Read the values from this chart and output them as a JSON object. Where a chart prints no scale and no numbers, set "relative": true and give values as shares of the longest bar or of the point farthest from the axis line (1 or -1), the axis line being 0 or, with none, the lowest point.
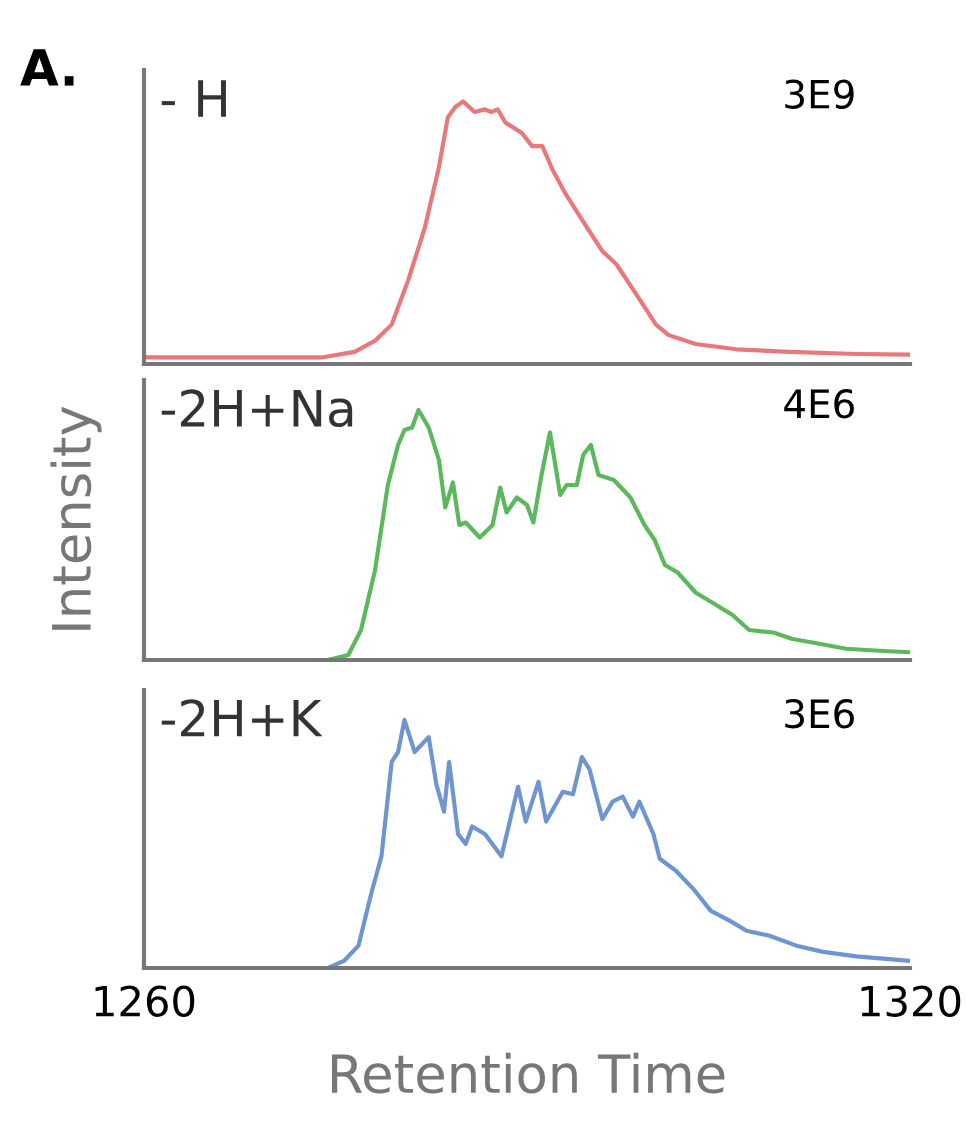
{
  "chart_data": [
    {
      "type": "line",
      "title": "A.",
      "relative": true,
      "xlim": [
        1260,
        1320
      ],
      "tick_labels": false,
      "annotations": [
        "- H",
        "3E9"
      ],
      "series": [
        {
          "color": "#e8787a",
          "x": [
            1260,
            1273.9,
            1276.5,
            1278.1,
            1279.4,
            1280.7,
            1282.0,
            1283.1,
            1283.8,
            1284.4,
            1285.0,
            1285.9,
            1286.7,
            1287.2,
            1287.7,
            1288.3,
            1289.6,
            1290.4,
            1291.2,
            1292.0,
            1293.0,
            1294.3,
            1295.9,
            1297.0,
            1298.5,
            1300.1,
            1301.1,
            1303.2,
            1306.4,
            1310.6,
            1315.8,
            1320
          ],
          "values": [
            0.025,
            0.025,
            0.046,
            0.089,
            0.15,
            0.32,
            0.52,
            0.75,
            0.94,
            0.98,
            1.0,
            0.96,
            0.97,
            0.96,
            0.97,
            0.92,
            0.88,
            0.83,
            0.83,
            0.74,
            0.65,
            0.55,
            0.43,
            0.38,
            0.27,
            0.15,
            0.11,
            0.076,
            0.056,
            0.046,
            0.038,
            0.036
          ]
        }
      ]
    },
    {
      "type": "line",
      "ylabel": "Intensity",
      "relative": true,
      "xlim": [
        1260,
        1320
      ],
      "tick_labels": false,
      "annotations": [
        "-2H+Na",
        "4E6"
      ],
      "series": [
        {
          "color": "#5cb85c",
          "x": [
            1260,
            1274.4,
            1276.0,
            1277.0,
            1278.1,
            1279.1,
            1279.9,
            1280.4,
            1281.0,
            1281.5,
            1282.3,
            1283.1,
            1283.6,
            1284.2,
            1284.7,
            1285.2,
            1286.3,
            1287.3,
            1287.9,
            1288.4,
            1289.2,
            1290.0,
            1290.5,
            1291.1,
            1291.8,
            1292.6,
            1293.1,
            1293.9,
            1294.4,
            1295.0,
            1295.6,
            1296.8,
            1298.1,
            1299.2,
            1300.0,
            1300.8,
            1301.8,
            1303.2,
            1304.5,
            1306.1,
            1307.4,
            1309.3,
            1310.8,
            1312.9,
            1315.0,
            1317.6,
            1320
          ],
          "values": [
            0,
            0,
            0.02,
            0.12,
            0.36,
            0.7,
            0.86,
            0.92,
            0.93,
            1.0,
            0.93,
            0.8,
            0.61,
            0.71,
            0.54,
            0.55,
            0.49,
            0.54,
            0.69,
            0.59,
            0.65,
            0.62,
            0.55,
            0.73,
            0.91,
            0.66,
            0.7,
            0.7,
            0.82,
            0.86,
            0.74,
            0.72,
            0.65,
            0.54,
            0.48,
            0.38,
            0.35,
            0.27,
            0.23,
            0.18,
            0.12,
            0.11,
            0.084,
            0.065,
            0.045,
            0.037,
            0.031
          ]
        }
      ]
    },
    {
      "type": "line",
      "xlabel": "Retention Time",
      "relative": true,
      "xlim": [
        1260,
        1320
      ],
      "xticks": [
        1260,
        1320
      ],
      "tick_labels": "x",
      "annotations": [
        "-2H+K",
        "3E6"
      ],
      "series": [
        {
          "color": "#6e95d0",
          "x": [
            1260,
            1274.4,
            1275.7,
            1276.8,
            1277.8,
            1278.6,
            1279.4,
            1279.9,
            1280.4,
            1281.2,
            1282.3,
            1282.9,
            1283.5,
            1283.9,
            1284.6,
            1285.2,
            1285.7,
            1286.7,
            1288.0,
            1289.3,
            1289.9,
            1290.9,
            1291.5,
            1292.8,
            1293.6,
            1294.3,
            1294.9,
            1295.9,
            1296.7,
            1297.5,
            1298.3,
            1298.8,
            1299.9,
            1300.4,
            1301.7,
            1303.0,
            1304.4,
            1305.9,
            1307.2,
            1309.0,
            1311.1,
            1313.2,
            1315.8,
            1320
          ],
          "values": [
            0,
            0,
            0.03,
            0.09,
            0.3,
            0.45,
            0.83,
            0.87,
            1.0,
            0.87,
            0.93,
            0.74,
            0.63,
            0.83,
            0.54,
            0.5,
            0.57,
            0.54,
            0.45,
            0.73,
            0.59,
            0.75,
            0.59,
            0.71,
            0.7,
            0.85,
            0.8,
            0.6,
            0.67,
            0.69,
            0.61,
            0.67,
            0.54,
            0.44,
            0.39,
            0.32,
            0.23,
            0.19,
            0.15,
            0.13,
            0.09,
            0.065,
            0.047,
            0.029
          ]
        }
      ]
    }
  ]
}
